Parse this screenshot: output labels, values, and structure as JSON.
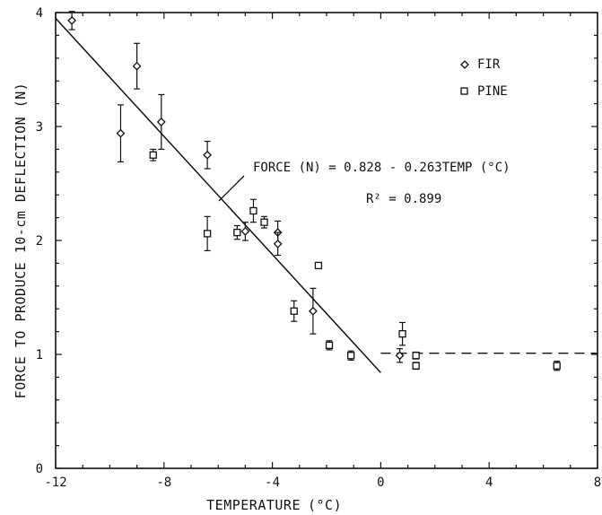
{
  "chart_data": {
    "type": "scatter",
    "xlabel": "TEMPERATURE",
    "xlabel_unit": "(°C)",
    "ylabel": "FORCE TO PRODUCE 10-cm DEFLECTION (N)",
    "xlim": [
      -12,
      8
    ],
    "ylim": [
      0,
      4
    ],
    "x_ticks": [
      -12,
      -8,
      -4,
      0,
      4,
      8
    ],
    "y_ticks": [
      0,
      1,
      2,
      3,
      4
    ],
    "legend_position": "top-right",
    "series": [
      {
        "name": "FIR",
        "marker": "diamond",
        "points": [
          {
            "x": -11.4,
            "y": 3.93,
            "err": 0.08
          },
          {
            "x": -9.6,
            "y": 2.94,
            "err": 0.25
          },
          {
            "x": -9.0,
            "y": 3.53,
            "err": 0.2
          },
          {
            "x": -8.1,
            "y": 3.04,
            "err": 0.24
          },
          {
            "x": -6.4,
            "y": 2.75,
            "err": 0.12
          },
          {
            "x": -5.0,
            "y": 2.08,
            "err": 0.08
          },
          {
            "x": -3.8,
            "y": 2.07,
            "err": 0.1
          },
          {
            "x": -3.8,
            "y": 1.97,
            "err": 0.1
          },
          {
            "x": -2.5,
            "y": 1.38,
            "err": 0.2
          },
          {
            "x": 0.7,
            "y": 0.99,
            "err": 0.06
          }
        ]
      },
      {
        "name": "PINE",
        "marker": "square",
        "points": [
          {
            "x": -8.4,
            "y": 2.75,
            "err": 0.05
          },
          {
            "x": -6.4,
            "y": 2.06,
            "err": 0.15
          },
          {
            "x": -5.3,
            "y": 2.07,
            "err": 0.06
          },
          {
            "x": -4.7,
            "y": 2.26,
            "err": 0.1
          },
          {
            "x": -4.3,
            "y": 2.16,
            "err": 0.05
          },
          {
            "x": -3.2,
            "y": 1.38,
            "err": 0.09
          },
          {
            "x": -2.3,
            "y": 1.78,
            "err": 0.0
          },
          {
            "x": -1.9,
            "y": 1.08,
            "err": 0.04
          },
          {
            "x": -1.1,
            "y": 0.99,
            "err": 0.04
          },
          {
            "x": 0.8,
            "y": 1.18,
            "err": 0.1
          },
          {
            "x": 1.3,
            "y": 0.99,
            "err": 0.03
          },
          {
            "x": 1.3,
            "y": 0.9,
            "err": 0.03
          },
          {
            "x": 6.5,
            "y": 0.9,
            "err": 0.04
          }
        ]
      }
    ],
    "regression": {
      "x_range": [
        -12,
        0
      ],
      "y_at_x_min": 3.95,
      "y_at_x_max": 0.84,
      "equation": "FORCE (N) = 0.828 - 0.263TEMP (°C)",
      "r2": "R² = 0.899"
    },
    "plateau": {
      "x_range": [
        0,
        8
      ],
      "y": 1.01,
      "style": "dashed"
    }
  }
}
